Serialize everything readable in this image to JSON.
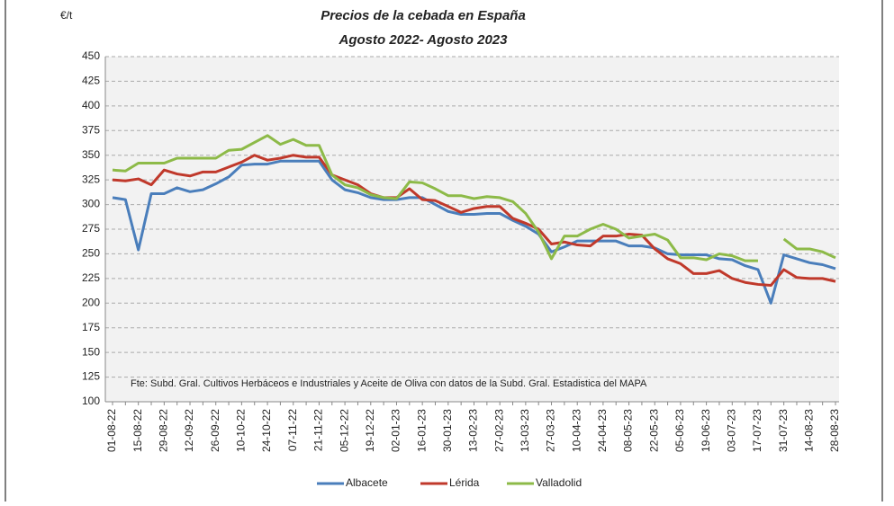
{
  "chart_data": {
    "type": "line",
    "title": "Precios de la cebada en España",
    "subtitle": "Agosto 2022- Agosto 2023",
    "y_label": "€/t",
    "annotation": "Fte: Subd. Gral. Cultivos Herbáceos e Industriales y Aceite de Oliva con datos de la Subd. Gral. Estadistica del MAPA",
    "categories": [
      "01-08-22",
      null,
      "15-08-22",
      null,
      "29-08-22",
      null,
      "12-09-22",
      null,
      "26-09-22",
      null,
      "10-10-22",
      null,
      "24-10-22",
      null,
      "07-11-22",
      null,
      "21-11-22",
      null,
      "05-12-22",
      null,
      "19-12-22",
      null,
      "02-01-23",
      null,
      "16-01-23",
      null,
      "30-01-23",
      null,
      "13-02-23",
      null,
      "27-02-23",
      null,
      "13-03-23",
      null,
      "27-03-23",
      null,
      "10-04-23",
      null,
      "24-04-23",
      null,
      "08-05-23",
      null,
      "22-05-23",
      null,
      "05-06-23",
      null,
      "19-06-23",
      null,
      "03-07-23",
      null,
      "17-07-23",
      null,
      "31-07-23",
      null,
      "14-08-23",
      null,
      "28-08-23"
    ],
    "series": [
      {
        "name": "Albacete",
        "color": "#4a7ebb",
        "values": [
          307,
          305,
          254,
          311,
          311,
          317,
          313,
          315,
          321,
          328,
          340,
          341,
          341,
          344,
          344,
          344,
          344,
          325,
          315,
          312,
          307,
          305,
          305,
          307,
          307,
          300,
          293,
          290,
          290,
          291,
          291,
          284,
          278,
          270,
          252,
          257,
          263,
          263,
          263,
          263,
          258,
          258,
          256,
          250,
          249,
          249,
          249,
          245,
          244,
          238,
          234,
          200,
          249,
          245,
          241,
          239,
          235
        ]
      },
      {
        "name": "Lérida",
        "color": "#c0392b",
        "values": [
          325,
          324,
          326,
          320,
          335,
          331,
          329,
          333,
          333,
          338,
          343,
          350,
          345,
          347,
          350,
          348,
          348,
          330,
          325,
          320,
          311,
          307,
          307,
          316,
          305,
          304,
          298,
          292,
          296,
          298,
          298,
          286,
          281,
          275,
          260,
          262,
          259,
          258,
          268,
          268,
          270,
          269,
          255,
          245,
          240,
          230,
          230,
          233,
          225,
          221,
          219,
          218,
          234,
          226,
          225,
          225,
          222
        ]
      },
      {
        "name": "Valladolid",
        "color": "#8dba48",
        "values": [
          335,
          334,
          342,
          342,
          342,
          347,
          347,
          347,
          347,
          355,
          356,
          363,
          370,
          361,
          366,
          360,
          360,
          330,
          320,
          317,
          310,
          307,
          306,
          323,
          322,
          316,
          309,
          309,
          306,
          308,
          307,
          303,
          291,
          272,
          245,
          268,
          268,
          275,
          280,
          275,
          266,
          268,
          270,
          264,
          246,
          246,
          244,
          250,
          248,
          243,
          243,
          null,
          265,
          255,
          255,
          252,
          246
        ]
      }
    ],
    "ylim": [
      100,
      450
    ],
    "yticks": [
      100,
      125,
      150,
      175,
      200,
      225,
      250,
      275,
      300,
      325,
      350,
      375,
      400,
      425,
      450
    ],
    "grid": true,
    "legend": "bottom"
  }
}
